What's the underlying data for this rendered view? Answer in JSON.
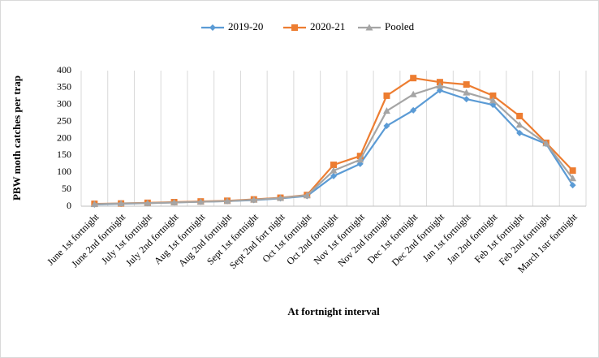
{
  "chart_data": {
    "type": "line",
    "x_label": "At fortnight interval",
    "y_label": "PBW moth catches per trap",
    "categories": [
      "June 1st fortnight",
      "June 2nd fortnight",
      "July 1st fortnight",
      "July 2nd fortnight",
      "Aug 1st fortnight",
      "Aug 2nd fortnight",
      "Sept 1st fortnight",
      "Sept 2nd fort night",
      "Oct 1st fortnight",
      "Oct 2nd fortnight",
      "Nov 1st fortnight",
      "Nov 2nd fortnight",
      "Dec 1st fortnight",
      "Dec 2nd fortnight",
      "Jan 1st fortnight",
      "Jan 2nd fortnight",
      "Feb 1st fortnight",
      "Feb 2nd fortnight",
      "March 1str fortnight"
    ],
    "series": [
      {
        "name": "2019-20",
        "color": "#5b9bd5",
        "marker": "diamond",
        "values": [
          5,
          7,
          9,
          11,
          13,
          15,
          18,
          23,
          30,
          89,
          125,
          237,
          283,
          342,
          316,
          299,
          216,
          184,
          62
        ]
      },
      {
        "name": "2020-21",
        "color": "#ed7d31",
        "marker": "square",
        "values": [
          7,
          8,
          10,
          12,
          14,
          16,
          20,
          25,
          33,
          122,
          148,
          326,
          378,
          366,
          359,
          326,
          266,
          187,
          105
        ]
      },
      {
        "name": "Pooled",
        "color": "#a5a5a5",
        "marker": "triangle",
        "values": [
          6,
          8,
          9,
          11,
          13,
          15,
          19,
          24,
          32,
          105,
          137,
          281,
          330,
          355,
          335,
          312,
          240,
          185,
          82
        ]
      }
    ],
    "ylim": [
      0,
      400
    ],
    "yticks": [
      0,
      50,
      100,
      150,
      200,
      250,
      300,
      350,
      400
    ],
    "grid": true,
    "legend": "top"
  }
}
